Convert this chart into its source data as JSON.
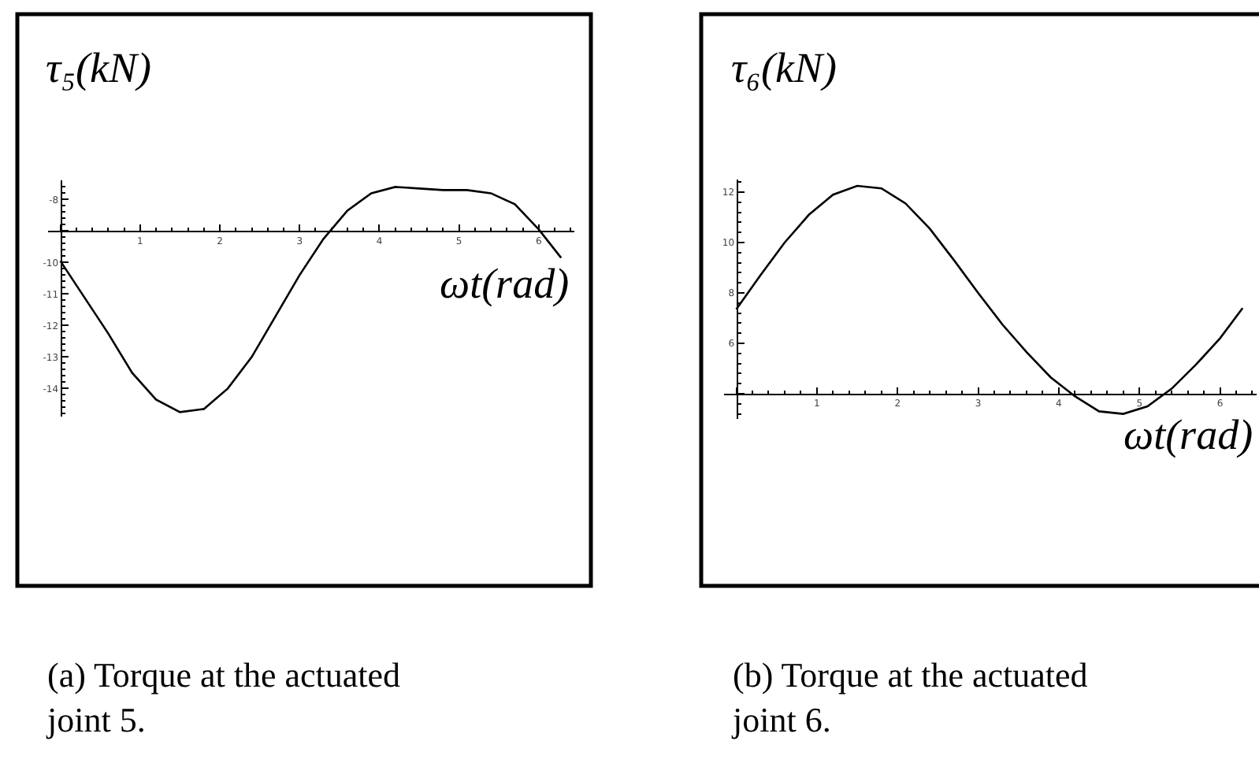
{
  "chart_data": [
    {
      "type": "line",
      "ylabel": "τ₅(kN)",
      "xlabel": "ωt(rad)",
      "annotations": [
        "(a) Torque at the actuated joint 5."
      ],
      "color": "#000000",
      "marker": "none",
      "grid": false,
      "x": [
        0,
        0.3,
        0.6,
        0.9,
        1.2,
        1.5,
        1.8,
        2.1,
        2.4,
        2.7,
        3.0,
        3.3,
        3.6,
        3.9,
        4.2,
        4.5,
        4.8,
        5.1,
        5.4,
        5.7,
        6.0,
        6.28
      ],
      "values": [
        -9.95,
        -11.1,
        -12.25,
        -13.5,
        -14.35,
        -14.75,
        -14.65,
        -14.0,
        -13.0,
        -11.7,
        -10.4,
        -9.25,
        -8.35,
        -7.8,
        -7.6,
        -7.65,
        -7.7,
        -7.7,
        -7.8,
        -8.15,
        -8.95,
        -9.85
      ],
      "xlim": [
        -0.15,
        6.45
      ],
      "ylim": [
        -14.9,
        -7.4
      ],
      "xticks": [
        {
          "value": 0,
          "label": null
        },
        1,
        2,
        3,
        4,
        5,
        6
      ],
      "yticks": [
        -8,
        {
          "value": -9,
          "label": null
        },
        -10,
        -11,
        -12,
        -13,
        -14
      ]
    },
    {
      "type": "line",
      "ylabel": "τ₆(kN)",
      "xlabel": "ωt(rad)",
      "annotations": [
        "(b) Torque at the actuated joint 6."
      ],
      "color": "#000000",
      "marker": "none",
      "grid": false,
      "x": [
        0,
        0.3,
        0.6,
        0.9,
        1.2,
        1.5,
        1.8,
        2.1,
        2.4,
        2.7,
        3.0,
        3.3,
        3.6,
        3.9,
        4.2,
        4.5,
        4.8,
        5.1,
        5.4,
        5.7,
        6.0,
        6.28
      ],
      "values": [
        7.35,
        8.7,
        10.0,
        11.1,
        11.9,
        12.25,
        12.15,
        11.55,
        10.55,
        9.3,
        8.0,
        6.75,
        5.65,
        4.65,
        3.9,
        3.3,
        3.2,
        3.5,
        4.2,
        5.15,
        6.2,
        7.4
      ],
      "xlim": [
        -0.15,
        6.45
      ],
      "ylim": [
        3.0,
        12.5
      ],
      "xticks": [
        {
          "value": 0,
          "label": null
        },
        1,
        2,
        3,
        4,
        5,
        6
      ],
      "yticks": [
        12,
        10,
        8,
        6,
        {
          "value": 4,
          "label": null
        }
      ]
    }
  ]
}
